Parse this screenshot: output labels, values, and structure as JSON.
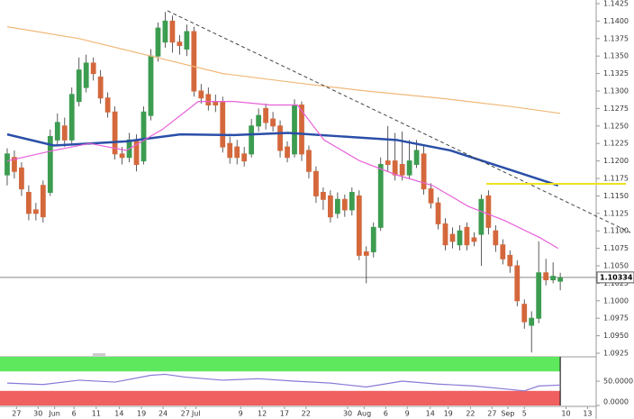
{
  "chart_data": {
    "type": "candlestick",
    "up_color": "#3c9c50",
    "down_color": "#d4683c",
    "xlim": [
      -1,
      82
    ],
    "xticks": [
      {
        "value": 1.3,
        "label": "27"
      },
      {
        "value": 4.3,
        "label": "30"
      },
      {
        "value": 6.6,
        "label": "Jun"
      },
      {
        "value": 9.3,
        "label": "6"
      },
      {
        "value": 12.4,
        "label": "11"
      },
      {
        "value": 15.6,
        "label": "14"
      },
      {
        "value": 18.7,
        "label": "19"
      },
      {
        "value": 21.7,
        "label": "24"
      },
      {
        "value": 24.8,
        "label": "27"
      },
      {
        "value": 26.3,
        "label": "Jul"
      },
      {
        "value": 32.5,
        "label": "9"
      },
      {
        "value": 35.5,
        "label": "12"
      },
      {
        "value": 38.6,
        "label": "17"
      },
      {
        "value": 41.6,
        "label": "22"
      },
      {
        "value": 47.4,
        "label": "30"
      },
      {
        "value": 49.7,
        "label": "Aug"
      },
      {
        "value": 52.7,
        "label": "6"
      },
      {
        "value": 55.7,
        "label": "9"
      },
      {
        "value": 58.9,
        "label": "14"
      },
      {
        "value": 61.4,
        "label": "19"
      },
      {
        "value": 64.5,
        "label": "22"
      },
      {
        "value": 67.5,
        "label": "27"
      },
      {
        "value": 69.7,
        "label": "Sep"
      },
      {
        "value": 72,
        "label": "5"
      },
      {
        "value": 77.8,
        "label": "10"
      },
      {
        "value": 80.8,
        "label": "13"
      }
    ],
    "ylim": [
      1.0925,
      1.1425
    ],
    "yticks": [
      {
        "value": 1.0925,
        "label": "1.0925"
      },
      {
        "value": 1.095,
        "label": "1.0950"
      },
      {
        "value": 1.0975,
        "label": "1.0975"
      },
      {
        "value": 1.1,
        "label": "1.1000"
      },
      {
        "value": 1.1025,
        "label": "1.1025"
      },
      {
        "value": 1.105,
        "label": "1.1050"
      },
      {
        "value": 1.1075,
        "label": "1.1075"
      },
      {
        "value": 1.11,
        "label": "1.1100"
      },
      {
        "value": 1.1125,
        "label": "1.1125"
      },
      {
        "value": 1.115,
        "label": "1.1150"
      },
      {
        "value": 1.1175,
        "label": "1.1175"
      },
      {
        "value": 1.12,
        "label": "1.1200"
      },
      {
        "value": 1.1225,
        "label": "1.1225"
      },
      {
        "value": 1.125,
        "label": "1.1250"
      },
      {
        "value": 1.1275,
        "label": "1.1275"
      },
      {
        "value": 1.13,
        "label": "1.1300"
      },
      {
        "value": 1.1325,
        "label": "1.1325"
      },
      {
        "value": 1.135,
        "label": "1.1350"
      },
      {
        "value": 1.1375,
        "label": "1.1375"
      },
      {
        "value": 1.14,
        "label": "1.1400"
      },
      {
        "value": 1.1425,
        "label": "1.1425"
      }
    ],
    "open": [
      1.118,
      1.1205,
      1.119,
      1.1155,
      1.113,
      1.1165,
      1.1155,
      1.123,
      1.125,
      1.123,
      1.1285,
      1.1305,
      1.134,
      1.132,
      1.129,
      1.127,
      1.121,
      1.1205,
      1.123,
      1.12,
      1.1265,
      1.135,
      1.137,
      1.14,
      1.137,
      1.136,
      1.1385,
      1.13,
      1.1295,
      1.1285,
      1.1285,
      1.1225,
      1.122,
      1.121,
      1.121,
      1.125,
      1.1275,
      1.126,
      1.125,
      1.122,
      1.121,
      1.128,
      1.1215,
      1.1185,
      1.1155,
      1.115,
      1.1125,
      1.1145,
      1.113,
      1.115,
      1.107,
      1.107,
      1.1105,
      1.12,
      1.12,
      1.1195,
      1.118,
      1.1195,
      1.121,
      1.116,
      1.114,
      1.111,
      1.1095,
      1.108,
      1.1105,
      1.109,
      1.1095,
      1.115,
      1.11,
      1.108,
      1.1065,
      1.105,
      1.0995,
      1.0965,
      1.0975,
      1.104,
      1.103,
      1.1028
    ],
    "high": [
      1.1218,
      1.1215,
      1.1198,
      1.1165,
      1.114,
      1.1172,
      1.1245,
      1.1268,
      1.1262,
      1.1305,
      1.1348,
      1.1352,
      1.1348,
      1.133,
      1.1298,
      1.1278,
      1.122,
      1.124,
      1.1238,
      1.1278,
      1.136,
      1.1398,
      1.1413,
      1.1408,
      1.138,
      1.1395,
      1.1392,
      1.131,
      1.1305,
      1.1295,
      1.1292,
      1.1235,
      1.123,
      1.122,
      1.126,
      1.1275,
      1.1282,
      1.127,
      1.1258,
      1.1228,
      1.1288,
      1.1285,
      1.1222,
      1.1192,
      1.1162,
      1.1158,
      1.1155,
      1.1152,
      1.1162,
      1.1158,
      1.1078,
      1.1112,
      1.1205,
      1.125,
      1.124,
      1.1242,
      1.123,
      1.123,
      1.1222,
      1.1168,
      1.1148,
      1.1118,
      1.1105,
      1.1108,
      1.1112,
      1.1098,
      1.1152,
      1.1158,
      1.1108,
      1.1088,
      1.1072,
      1.1058,
      1.1002,
      1.0985,
      1.1085,
      1.106,
      1.1055,
      1.104
    ],
    "low": [
      1.1165,
      1.1175,
      1.115,
      1.1115,
      1.1115,
      1.1112,
      1.115,
      1.1222,
      1.122,
      1.1225,
      1.1278,
      1.1298,
      1.1315,
      1.1282,
      1.1262,
      1.1202,
      1.1195,
      1.1198,
      1.1185,
      1.1195,
      1.1258,
      1.1342,
      1.1362,
      1.1355,
      1.1352,
      1.135,
      1.1292,
      1.1282,
      1.1272,
      1.127,
      1.1212,
      1.1196,
      1.1195,
      1.1192,
      1.1205,
      1.1242,
      1.1245,
      1.1242,
      1.1205,
      1.1198,
      1.1205,
      1.12,
      1.1175,
      1.114,
      1.113,
      1.1112,
      1.1118,
      1.112,
      1.1122,
      1.1058,
      1.1025,
      1.1062,
      1.11,
      1.1185,
      1.1172,
      1.1172,
      1.1175,
      1.119,
      1.1152,
      1.1132,
      1.1102,
      1.1072,
      1.1075,
      1.1072,
      1.1072,
      1.1078,
      1.105,
      1.1095,
      1.107,
      1.1052,
      1.104,
      1.0992,
      1.096,
      1.0926,
      1.0968,
      1.1022,
      1.1025,
      1.1015
    ],
    "close": [
      1.121,
      1.1185,
      1.116,
      1.1125,
      1.1125,
      1.112,
      1.1235,
      1.1255,
      1.123,
      1.1295,
      1.133,
      1.134,
      1.1325,
      1.129,
      1.127,
      1.121,
      1.1205,
      1.123,
      1.1195,
      1.127,
      1.135,
      1.139,
      1.14,
      1.137,
      1.1365,
      1.1385,
      1.13,
      1.129,
      1.128,
      1.128,
      1.122,
      1.1205,
      1.1205,
      1.12,
      1.125,
      1.1265,
      1.1255,
      1.125,
      1.1215,
      1.1205,
      1.128,
      1.121,
      1.1185,
      1.115,
      1.1145,
      1.112,
      1.1145,
      1.113,
      1.1155,
      1.1065,
      1.1065,
      1.1105,
      1.1195,
      1.1195,
      1.118,
      1.118,
      1.12,
      1.1215,
      1.116,
      1.114,
      1.111,
      1.108,
      1.1085,
      1.11,
      1.108,
      1.1085,
      1.1145,
      1.1105,
      1.108,
      1.106,
      1.105,
      1.1,
      1.097,
      1.0975,
      1.104,
      1.103,
      1.1035,
      1.1033
    ],
    "series": [
      {
        "color": "#f0b878",
        "x": [
          0,
          10,
          20,
          30,
          40,
          50,
          60,
          70,
          77
        ],
        "values": [
          1.1392,
          1.1375,
          1.135,
          1.1325,
          1.1312,
          1.13,
          1.129,
          1.1278,
          1.1268
        ]
      },
      {
        "color": "#2a4fa8",
        "x": [
          0,
          6.5,
          11.5,
          16.6,
          24.1,
          31.6,
          39.1,
          46.6,
          54.2,
          61.7,
          69.2,
          76.7
        ],
        "values": [
          1.1238,
          1.1222,
          1.1225,
          1.1228,
          1.1238,
          1.1237,
          1.124,
          1.1235,
          1.123,
          1.1215,
          1.119,
          1.1165
        ]
      },
      {
        "color": "#e860d8",
        "x": [
          0,
          6.5,
          11.5,
          16.6,
          21.6,
          26.6,
          31.6,
          36.6,
          40.4,
          44.1,
          49.1,
          54.2,
          59.2,
          64.2,
          69.2,
          74.2,
          76.7
        ],
        "values": [
          1.12,
          1.1215,
          1.1225,
          1.1215,
          1.1245,
          1.1285,
          1.1285,
          1.128,
          1.128,
          1.123,
          1.12,
          1.118,
          1.1165,
          1.1135,
          1.1115,
          1.109,
          1.1075
        ]
      }
    ],
    "last_price": 1.10334,
    "last_price_label": "1.10334",
    "oscillator": {
      "color": "#8a78d8",
      "ylim": [
        0,
        100
      ],
      "yticks": [
        {
          "value": 0,
          "label": "0.0000"
        },
        {
          "value": 50,
          "label": "50.0000"
        }
      ],
      "overbought": 70,
      "oversold": 30,
      "overbought_color": "#5ee85e",
      "oversold_color": "#f06060",
      "x": [
        0,
        5,
        10,
        15,
        20,
        22,
        25,
        30,
        35,
        40,
        45,
        50,
        55,
        60,
        65,
        70,
        72,
        74,
        77
      ],
      "values": [
        46,
        43,
        52,
        48,
        62,
        64,
        58,
        52,
        55,
        50,
        46,
        38,
        50,
        44,
        40,
        33,
        30,
        40,
        42
      ]
    }
  }
}
